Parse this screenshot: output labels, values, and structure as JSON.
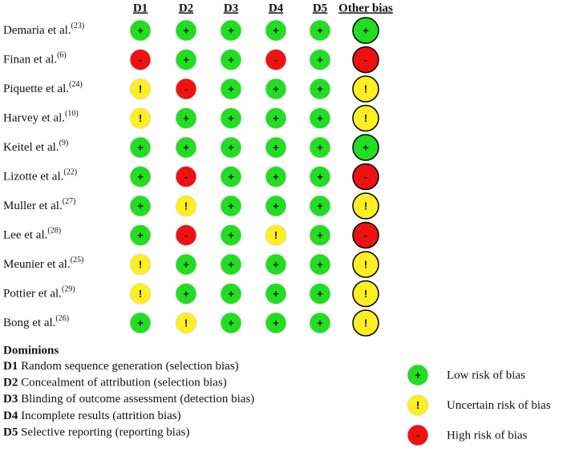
{
  "columns": [
    "D1",
    "D2",
    "D3",
    "D4",
    "D5",
    "Other bias"
  ],
  "rows": [
    {
      "name": "Demaria et al.",
      "ref": "(23)",
      "ratings": [
        "+",
        "+",
        "+",
        "+",
        "+",
        "+"
      ]
    },
    {
      "name": "Finan et al.",
      "ref": "(6)",
      "ratings": [
        "-",
        "+",
        "+",
        "-",
        "+",
        "-"
      ]
    },
    {
      "name": "Piquette et al.",
      "ref": "(24)",
      "ratings": [
        "!",
        "-",
        "+",
        "+",
        "+",
        "!"
      ]
    },
    {
      "name": "Harvey et al.",
      "ref": "(10)",
      "ratings": [
        "!",
        "+",
        "+",
        "+",
        "+",
        "!"
      ]
    },
    {
      "name": "Keitel  et al.",
      "ref": "(9)",
      "ratings": [
        "+",
        "+",
        "+",
        "+",
        "+",
        "+"
      ]
    },
    {
      "name": "Lizotte et al.",
      "ref": "(22)",
      "ratings": [
        "+",
        "-",
        "+",
        "+",
        "+",
        "-"
      ]
    },
    {
      "name": "Muller et al.",
      "ref": "(27)",
      "ratings": [
        "+",
        "!",
        "+",
        "+",
        "+",
        "!"
      ]
    },
    {
      "name": "Lee et al.",
      "ref": "(28)",
      "ratings": [
        "+",
        "-",
        "+",
        "!",
        "+",
        "-"
      ]
    },
    {
      "name": "Meunier et al.",
      "ref": "(25)",
      "ratings": [
        "!",
        "+",
        "+",
        "+",
        "+",
        "!"
      ]
    },
    {
      "name": "Pottier et al.",
      "ref": "(29)",
      "ratings": [
        "!",
        "+",
        "+",
        "+",
        "+",
        "!"
      ]
    },
    {
      "name": "Bong et al.",
      "ref": "(26)",
      "ratings": [
        "+",
        "!",
        "+",
        "+",
        "+",
        "!"
      ]
    }
  ],
  "dominions": {
    "title": "Dominions",
    "items": [
      {
        "code": "D1",
        "text": "Random sequence generation (selection bias)"
      },
      {
        "code": "D2",
        "text": "Concealment of attribution (selection bias)"
      },
      {
        "code": "D3",
        "text": "Blinding of outcome assessment (detection bias)"
      },
      {
        "code": "D4",
        "text": "Incomplete results (attrition bias)"
      },
      {
        "code": "D5",
        "text": "Selective reporting (reporting bias)"
      }
    ]
  },
  "legend": [
    {
      "symbol": "+",
      "label": "Low risk of bias",
      "color": "#22dd22"
    },
    {
      "symbol": "!",
      "label": "Uncertain risk of bias",
      "color": "#ffee22"
    },
    {
      "symbol": "-",
      "label": "High risk of bias",
      "color": "#ee1111"
    }
  ]
}
